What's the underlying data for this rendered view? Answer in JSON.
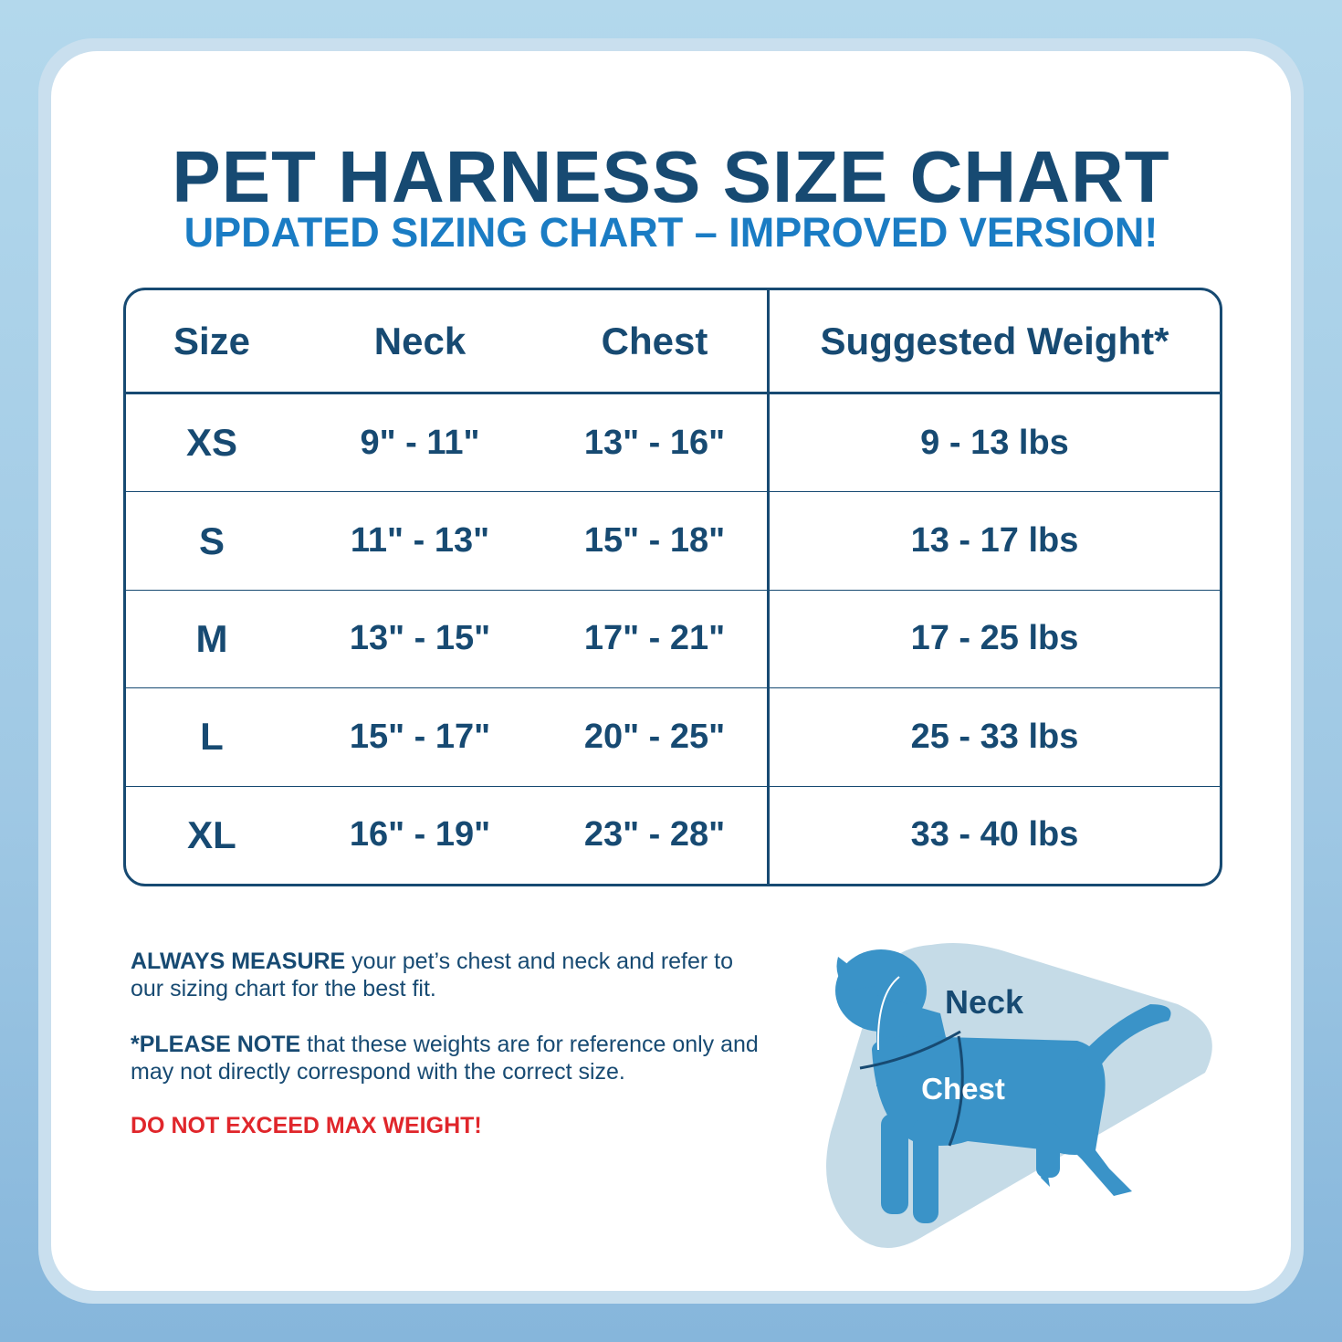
{
  "header": {
    "title": "PET HARNESS SIZE CHART",
    "subtitle": "UPDATED SIZING CHART – IMPROVED VERSION!"
  },
  "table": {
    "columns": [
      "Size",
      "Neck",
      "Chest",
      "Suggested Weight*"
    ],
    "rows": [
      [
        "XS",
        "9\" - 11\"",
        "13\" - 16\"",
        "9 - 13 lbs"
      ],
      [
        "S",
        "11\" - 13\"",
        "15\" - 18\"",
        "13 - 17 lbs"
      ],
      [
        "M",
        "13\" - 15\"",
        "17\" - 21\"",
        "17 - 25  lbs"
      ],
      [
        "L",
        "15\" - 17\"",
        "20\" - 25\"",
        "25 - 33 lbs"
      ],
      [
        "XL",
        "16\" - 19\"",
        "23\" - 28\"",
        "33 - 40 lbs"
      ]
    ]
  },
  "notes": [
    {
      "bold": "ALWAYS MEASURE",
      "text": " your pet’s chest and neck and refer to our sizing chart for the best fit."
    },
    {
      "bold": "*PLEASE NOTE",
      "text": " that these weights are for reference only and may not directly correspond with the correct size."
    }
  ],
  "warning": "DO NOT EXCEED MAX WEIGHT!",
  "diagram": {
    "neck_label": "Neck",
    "chest_label": "Chest"
  }
}
